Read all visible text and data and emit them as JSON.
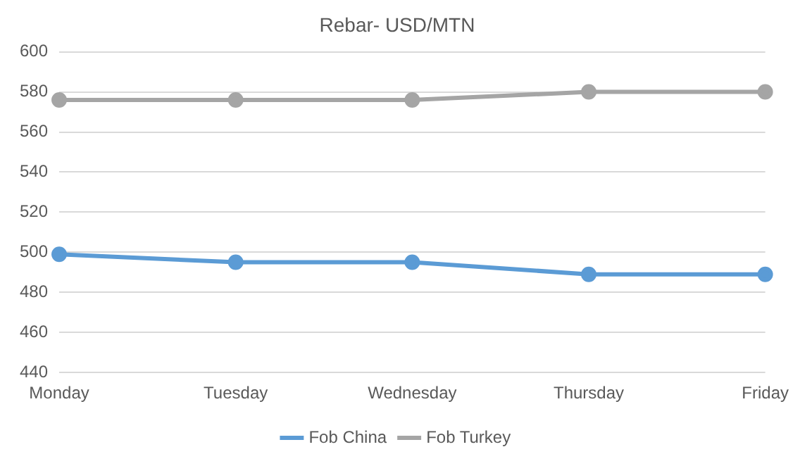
{
  "chart_data": {
    "type": "line",
    "title": "Rebar- USD/MTN",
    "categories": [
      "Monday",
      "Tuesday",
      "Wednesday",
      "Thursday",
      "Friday"
    ],
    "series": [
      {
        "name": "Fob China",
        "color": "#5b9bd5",
        "values": [
          499,
          495,
          495,
          489,
          489
        ]
      },
      {
        "name": "Fob Turkey",
        "color": "#a5a5a5",
        "values": [
          576,
          576,
          576,
          580,
          580
        ]
      }
    ],
    "ylim": [
      440,
      600
    ],
    "yticks": [
      440,
      460,
      480,
      500,
      520,
      540,
      560,
      580,
      600
    ],
    "grid": "y",
    "legend": "bottom",
    "marker": "circle",
    "line_style": "solid"
  }
}
